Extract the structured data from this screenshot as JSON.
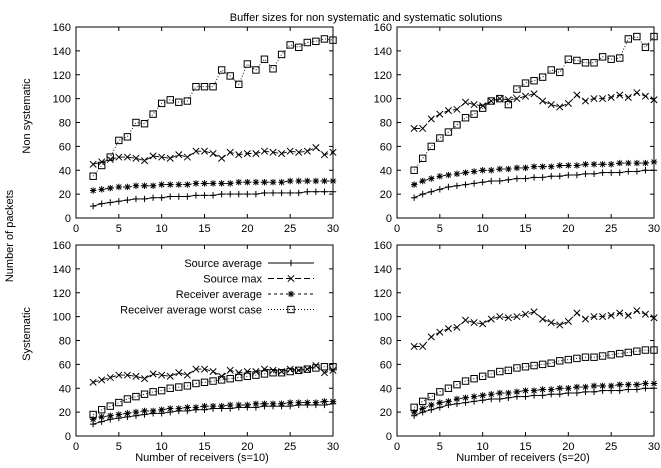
{
  "figure": {
    "title": "Buffer sizes for non systematic and systematic solutions",
    "ylabel": "Number of packets",
    "row_labels": [
      "Non systematic",
      "Systematic"
    ],
    "xlabels": [
      "Number of receivers (s=10)",
      "Number of receivers (s=20)"
    ]
  },
  "legend": {
    "entries": [
      "Source average",
      "Source max",
      "Receiver average",
      "Receiver average worst case"
    ],
    "placement": "inside bottom-left panel, top-center"
  },
  "axes": {
    "x_ticks": [
      "0",
      "5",
      "10",
      "15",
      "20",
      "25",
      "30"
    ],
    "y_ticks": [
      "0",
      "20",
      "40",
      "60",
      "80",
      "100",
      "120",
      "140",
      "160"
    ],
    "xlim": [
      0,
      30
    ],
    "ylim": [
      0,
      160
    ]
  },
  "chart_data": [
    {
      "type": "line",
      "panel": "Non systematic, s=10",
      "x": [
        2,
        3,
        4,
        5,
        6,
        7,
        8,
        9,
        10,
        11,
        12,
        13,
        14,
        15,
        16,
        17,
        18,
        19,
        20,
        21,
        22,
        23,
        24,
        25,
        26,
        27,
        28,
        29,
        30
      ],
      "series": [
        {
          "name": "Source average",
          "marker": "plus",
          "values": [
            10,
            12,
            13,
            14,
            15,
            16,
            16,
            17,
            17,
            18,
            18,
            18,
            19,
            19,
            19,
            20,
            20,
            20,
            20,
            20,
            21,
            21,
            21,
            21,
            21,
            22,
            22,
            22,
            22
          ]
        },
        {
          "name": "Source max",
          "marker": "x",
          "values": [
            45,
            47,
            49,
            51,
            51,
            50,
            48,
            52,
            51,
            50,
            53,
            51,
            56,
            56,
            54,
            50,
            55,
            53,
            54,
            54,
            56,
            55,
            54,
            56,
            55,
            56,
            59,
            53,
            55
          ]
        },
        {
          "name": "Receiver average",
          "marker": "asterisk",
          "values": [
            23,
            24,
            25,
            26,
            26,
            27,
            27,
            27,
            28,
            28,
            28,
            28,
            29,
            29,
            29,
            29,
            29,
            30,
            30,
            30,
            30,
            30,
            30,
            31,
            31,
            31,
            31,
            31,
            31
          ]
        },
        {
          "name": "Receiver average worst case",
          "marker": "square",
          "values": [
            35,
            44,
            51,
            65,
            68,
            80,
            79,
            87,
            96,
            99,
            97,
            98,
            110,
            110,
            110,
            124,
            119,
            112,
            129,
            124,
            133,
            125,
            137,
            145,
            143,
            147,
            148,
            150,
            149
          ]
        }
      ]
    },
    {
      "type": "line",
      "panel": "Non systematic, s=20",
      "x": [
        2,
        3,
        4,
        5,
        6,
        7,
        8,
        9,
        10,
        11,
        12,
        13,
        14,
        15,
        16,
        17,
        18,
        19,
        20,
        21,
        22,
        23,
        24,
        25,
        26,
        27,
        28,
        29,
        30
      ],
      "series": [
        {
          "name": "Source average",
          "marker": "plus",
          "values": [
            17,
            20,
            22,
            24,
            26,
            27,
            28,
            29,
            30,
            31,
            31,
            32,
            33,
            33,
            34,
            34,
            35,
            35,
            36,
            36,
            37,
            37,
            38,
            38,
            38,
            39,
            39,
            40,
            40
          ]
        },
        {
          "name": "Source max",
          "marker": "x",
          "values": [
            75,
            75,
            83,
            87,
            90,
            91,
            97,
            95,
            94,
            98,
            100,
            99,
            100,
            102,
            104,
            98,
            95,
            93,
            96,
            103,
            98,
            100,
            100,
            101,
            103,
            101,
            105,
            102,
            99
          ]
        },
        {
          "name": "Receiver average",
          "marker": "asterisk",
          "values": [
            28,
            31,
            33,
            35,
            36,
            37,
            38,
            39,
            40,
            40,
            41,
            41,
            42,
            42,
            43,
            43,
            43,
            44,
            44,
            44,
            45,
            45,
            45,
            45,
            46,
            46,
            46,
            46,
            47
          ]
        },
        {
          "name": "Receiver average worst case",
          "marker": "square",
          "values": [
            40,
            50,
            60,
            67,
            72,
            78,
            84,
            87,
            92,
            98,
            100,
            95,
            108,
            113,
            115,
            118,
            124,
            122,
            133,
            132,
            130,
            130,
            135,
            133,
            134,
            150,
            152,
            143,
            152
          ]
        }
      ]
    },
    {
      "type": "line",
      "panel": "Systematic, s=10",
      "x": [
        2,
        3,
        4,
        5,
        6,
        7,
        8,
        9,
        10,
        11,
        12,
        13,
        14,
        15,
        16,
        17,
        18,
        19,
        20,
        21,
        22,
        23,
        24,
        25,
        26,
        27,
        28,
        29,
        30
      ],
      "series": [
        {
          "name": "Source average",
          "marker": "plus",
          "values": [
            10,
            12,
            14,
            15,
            16,
            17,
            18,
            19,
            19,
            20,
            21,
            21,
            22,
            22,
            23,
            23,
            23,
            24,
            24,
            24,
            25,
            25,
            25,
            25,
            26,
            26,
            26,
            26,
            27
          ]
        },
        {
          "name": "Source max",
          "marker": "x",
          "values": [
            45,
            47,
            49,
            51,
            51,
            50,
            48,
            52,
            51,
            50,
            53,
            51,
            56,
            56,
            54,
            50,
            55,
            53,
            54,
            54,
            56,
            55,
            54,
            56,
            55,
            56,
            59,
            53,
            55
          ]
        },
        {
          "name": "Receiver average",
          "marker": "asterisk",
          "values": [
            14,
            16,
            17,
            18,
            19,
            20,
            21,
            21,
            22,
            23,
            23,
            24,
            24,
            25,
            25,
            25,
            26,
            26,
            26,
            27,
            27,
            27,
            27,
            28,
            28,
            28,
            28,
            29,
            29
          ]
        },
        {
          "name": "Receiver average worst case",
          "marker": "square",
          "values": [
            18,
            22,
            25,
            28,
            31,
            33,
            35,
            37,
            38,
            40,
            41,
            42,
            44,
            45,
            46,
            47,
            48,
            49,
            50,
            51,
            52,
            53,
            53,
            54,
            55,
            56,
            57,
            58,
            58
          ]
        }
      ]
    },
    {
      "type": "line",
      "panel": "Systematic, s=20",
      "x": [
        2,
        3,
        4,
        5,
        6,
        7,
        8,
        9,
        10,
        11,
        12,
        13,
        14,
        15,
        16,
        17,
        18,
        19,
        20,
        21,
        22,
        23,
        24,
        25,
        26,
        27,
        28,
        29,
        30
      ],
      "series": [
        {
          "name": "Source average",
          "marker": "plus",
          "values": [
            17,
            20,
            22,
            24,
            26,
            27,
            28,
            29,
            30,
            31,
            31,
            32,
            33,
            33,
            34,
            34,
            35,
            35,
            36,
            36,
            37,
            37,
            38,
            38,
            38,
            39,
            39,
            40,
            40
          ]
        },
        {
          "name": "Source max",
          "marker": "x",
          "values": [
            75,
            75,
            83,
            87,
            90,
            91,
            97,
            95,
            94,
            98,
            100,
            99,
            100,
            102,
            104,
            98,
            95,
            93,
            96,
            103,
            98,
            100,
            100,
            101,
            103,
            101,
            105,
            102,
            99
          ]
        },
        {
          "name": "Receiver average",
          "marker": "asterisk",
          "values": [
            20,
            23,
            26,
            28,
            29,
            31,
            32,
            33,
            34,
            35,
            36,
            36,
            37,
            38,
            38,
            39,
            39,
            40,
            40,
            41,
            41,
            42,
            42,
            42,
            43,
            43,
            43,
            44,
            44
          ]
        },
        {
          "name": "Receiver average worst case",
          "marker": "square",
          "values": [
            24,
            29,
            33,
            37,
            40,
            43,
            46,
            48,
            50,
            52,
            54,
            55,
            57,
            58,
            59,
            60,
            61,
            63,
            64,
            65,
            66,
            66,
            67,
            68,
            69,
            70,
            71,
            72,
            72
          ]
        }
      ]
    }
  ]
}
